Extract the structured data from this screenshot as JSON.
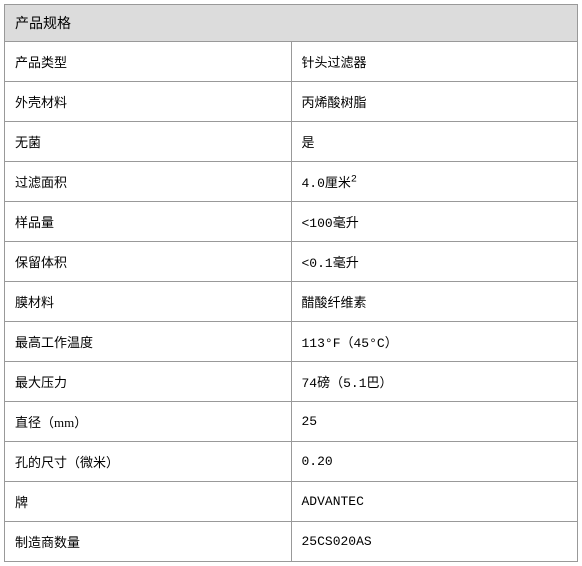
{
  "table": {
    "title": "产品规格",
    "header_bg": "#dcdcdc",
    "border_color": "#999999",
    "rows": [
      {
        "label": "产品类型",
        "value": "针头过滤器"
      },
      {
        "label": "外壳材料",
        "value": "丙烯酸树脂"
      },
      {
        "label": "无菌",
        "value": "是"
      },
      {
        "label": "过滤面积",
        "value": "4.0厘米",
        "sup": "2"
      },
      {
        "label": "样品量",
        "value": "<100毫升"
      },
      {
        "label": "保留体积",
        "value": "<0.1毫升"
      },
      {
        "label": "膜材料",
        "value": "醋酸纤维素"
      },
      {
        "label": "最高工作温度",
        "value": "113°F（45°C）"
      },
      {
        "label": "最大压力",
        "value": "74磅（5.1巴）"
      },
      {
        "label": "直径（mm）",
        "value": "25"
      },
      {
        "label": "孔的尺寸（微米）",
        "value": "0.20"
      },
      {
        "label": "牌",
        "value": "ADVANTEC"
      },
      {
        "label": "制造商数量",
        "value": "25CS020AS"
      }
    ]
  }
}
